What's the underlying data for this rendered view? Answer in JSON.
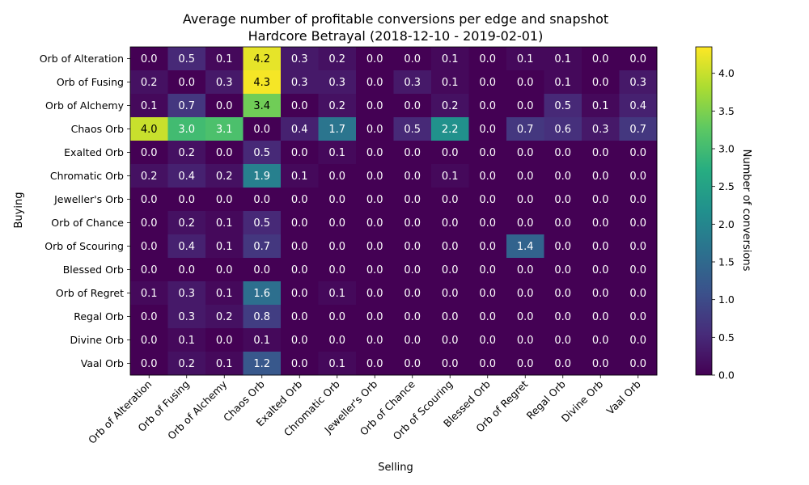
{
  "chart_data": {
    "type": "heatmap",
    "title": "Average number of profitable conversions per edge and snapshot",
    "subtitle": "Hardcore Betrayal (2018-12-10 - 2019-02-01)",
    "xlabel": "Selling",
    "ylabel": "Buying",
    "x_categories": [
      "Orb of Alteration",
      "Orb of Fusing",
      "Orb of Alchemy",
      "Chaos Orb",
      "Exalted Orb",
      "Chromatic Orb",
      "Jeweller's Orb",
      "Orb of Chance",
      "Orb of Scouring",
      "Blessed Orb",
      "Orb of Regret",
      "Regal Orb",
      "Divine Orb",
      "Vaal Orb"
    ],
    "y_categories": [
      "Orb of Alteration",
      "Orb of Fusing",
      "Orb of Alchemy",
      "Chaos Orb",
      "Exalted Orb",
      "Chromatic Orb",
      "Jeweller's Orb",
      "Orb of Chance",
      "Orb of Scouring",
      "Blessed Orb",
      "Orb of Regret",
      "Regal Orb",
      "Divine Orb",
      "Vaal Orb"
    ],
    "values": [
      [
        0.0,
        0.5,
        0.1,
        4.2,
        0.3,
        0.2,
        0.0,
        0.0,
        0.1,
        0.0,
        0.1,
        0.1,
        0.0,
        0.0
      ],
      [
        0.2,
        0.0,
        0.3,
        4.3,
        0.3,
        0.3,
        0.0,
        0.3,
        0.1,
        0.0,
        0.0,
        0.1,
        0.0,
        0.3
      ],
      [
        0.1,
        0.7,
        0.0,
        3.4,
        0.0,
        0.2,
        0.0,
        0.0,
        0.2,
        0.0,
        0.0,
        0.5,
        0.1,
        0.4
      ],
      [
        4.0,
        3.0,
        3.1,
        0.0,
        0.4,
        1.7,
        0.0,
        0.5,
        2.2,
        0.0,
        0.7,
        0.6,
        0.3,
        0.7
      ],
      [
        0.0,
        0.2,
        0.0,
        0.5,
        0.0,
        0.1,
        0.0,
        0.0,
        0.0,
        0.0,
        0.0,
        0.0,
        0.0,
        0.0
      ],
      [
        0.2,
        0.4,
        0.2,
        1.9,
        0.1,
        0.0,
        0.0,
        0.0,
        0.1,
        0.0,
        0.0,
        0.0,
        0.0,
        0.0
      ],
      [
        0.0,
        0.0,
        0.0,
        0.0,
        0.0,
        0.0,
        0.0,
        0.0,
        0.0,
        0.0,
        0.0,
        0.0,
        0.0,
        0.0
      ],
      [
        0.0,
        0.2,
        0.1,
        0.5,
        0.0,
        0.0,
        0.0,
        0.0,
        0.0,
        0.0,
        0.0,
        0.0,
        0.0,
        0.0
      ],
      [
        0.0,
        0.4,
        0.1,
        0.7,
        0.0,
        0.0,
        0.0,
        0.0,
        0.0,
        0.0,
        1.4,
        0.0,
        0.0,
        0.0
      ],
      [
        0.0,
        0.0,
        0.0,
        0.0,
        0.0,
        0.0,
        0.0,
        0.0,
        0.0,
        0.0,
        0.0,
        0.0,
        0.0,
        0.0
      ],
      [
        0.1,
        0.3,
        0.1,
        1.6,
        0.0,
        0.1,
        0.0,
        0.0,
        0.0,
        0.0,
        0.0,
        0.0,
        0.0,
        0.0
      ],
      [
        0.0,
        0.3,
        0.2,
        0.8,
        0.0,
        0.0,
        0.0,
        0.0,
        0.0,
        0.0,
        0.0,
        0.0,
        0.0,
        0.0
      ],
      [
        0.0,
        0.1,
        0.0,
        0.1,
        0.0,
        0.0,
        0.0,
        0.0,
        0.0,
        0.0,
        0.0,
        0.0,
        0.0,
        0.0
      ],
      [
        0.0,
        0.2,
        0.1,
        1.2,
        0.0,
        0.1,
        0.0,
        0.0,
        0.0,
        0.0,
        0.0,
        0.0,
        0.0,
        0.0
      ]
    ],
    "value_format": "0.0",
    "colormap": "viridis",
    "colorbar": {
      "label": "Number of conversions",
      "range": [
        0.0,
        4.35
      ],
      "ticks": [
        "0.0",
        "0.5",
        "1.0",
        "1.5",
        "2.0",
        "2.5",
        "3.0",
        "3.5",
        "4.0"
      ]
    },
    "grid": false
  }
}
